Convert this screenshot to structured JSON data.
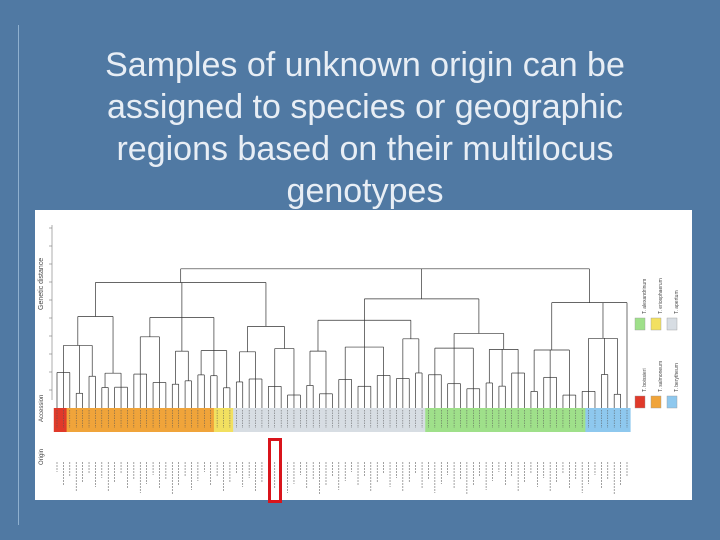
{
  "slide": {
    "title": "Samples of unknown origin can be assigned to species or geographic regions based on their multilocus genotypes"
  },
  "figure": {
    "y_axis_label": "Genetic distance",
    "row_label_top": "Accession",
    "row_label_bottom": "Origin",
    "legend": [
      "T. alexandrinum",
      "T. eriosphaerum",
      "T. apertum",
      "T. boissieri",
      "T. salmoneum",
      "T. berytheum"
    ],
    "species_colors": [
      "#e03a2a",
      "#f0a43a",
      "#f2e060",
      "#9fe08a",
      "#8ec8ee",
      "#d7dde3"
    ],
    "highlight_color": "#d9141b"
  }
}
